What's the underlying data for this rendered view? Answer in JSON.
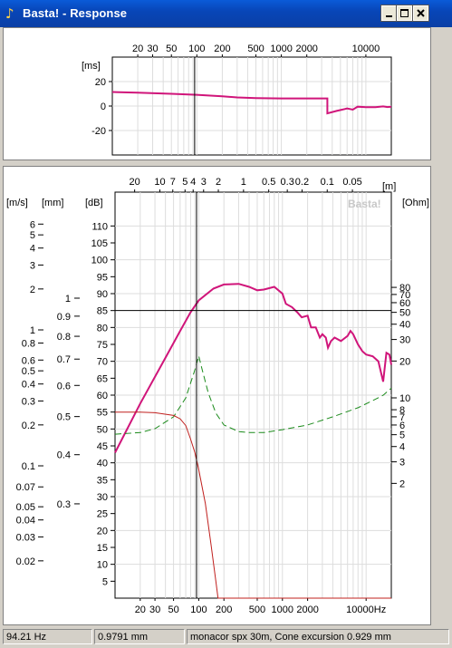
{
  "window": {
    "title": "Basta! - Response",
    "app_icon": "basta-note-icon",
    "buttons": [
      "minimize",
      "maximize",
      "close"
    ]
  },
  "top_chart": {
    "unit_label": "[ms]",
    "freq_ticks": [
      "20",
      "30",
      "50",
      "100",
      "200",
      "500",
      "1000",
      "2000",
      "10000"
    ],
    "y_ticks": [
      "20",
      "0",
      "-20"
    ]
  },
  "main_chart": {
    "watermark": "Basta!",
    "dist_unit": "[m]",
    "dist_ticks": [
      "20",
      "10",
      "7",
      "5",
      "4",
      "3",
      "2",
      "1",
      "0.5",
      "0.3",
      "0.2",
      "0.1",
      "0.05"
    ],
    "velocity_unit": "[m/s]",
    "velocity_ticks": [
      "6",
      "5",
      "4",
      "3",
      "2",
      "1",
      "0.8",
      "0.6",
      "0.5",
      "0.4",
      "0.3",
      "0.2",
      "0.1",
      "0.07",
      "0.05",
      "0.04",
      "0.03",
      "0.02"
    ],
    "excursion_unit": "[mm]",
    "excursion_ticks": [
      "1",
      "0.9",
      "0.8",
      "0.7",
      "0.6",
      "0.5",
      "0.4",
      "0.3"
    ],
    "db_unit": "[dB]",
    "db_ticks": [
      "110",
      "105",
      "100",
      "95",
      "90",
      "85",
      "80",
      "75",
      "70",
      "65",
      "60",
      "55",
      "50",
      "45",
      "40",
      "35",
      "30",
      "25",
      "20",
      "15",
      "10",
      "5"
    ],
    "ohm_unit": "[Ohm]",
    "ohm_ticks": [
      "80",
      "70",
      "60",
      "50",
      "40",
      "30",
      "20",
      "10",
      "8",
      "7",
      "6",
      "5",
      "4",
      "3",
      "2"
    ],
    "freq_ticks": [
      "20",
      "30",
      "50",
      "100",
      "200",
      "500",
      "1000",
      "2000",
      "10000Hz"
    ]
  },
  "chart_data": [
    {
      "type": "line",
      "title": "",
      "xlabel": "",
      "ylabel": "[ms]",
      "xscale": "log",
      "xlim": [
        10,
        20000
      ],
      "ylim": [
        -40,
        40
      ],
      "series": [
        {
          "color": "#d0157a",
          "points": [
            [
              10,
              11.5
            ],
            [
              20,
              11
            ],
            [
              50,
              10
            ],
            [
              100,
              9.2
            ],
            [
              200,
              8
            ],
            [
              300,
              7
            ],
            [
              500,
              6.5
            ],
            [
              1000,
              6.2
            ],
            [
              2000,
              6.2
            ],
            [
              3500,
              6.2
            ],
            [
              3500,
              -6
            ],
            [
              4500,
              -4
            ],
            [
              6000,
              -2
            ],
            [
              7000,
              -3
            ],
            [
              8000,
              -0.5
            ],
            [
              10000,
              -1
            ],
            [
              13000,
              -1
            ],
            [
              16000,
              -0.3
            ],
            [
              18000,
              -0.8
            ],
            [
              20000,
              -0.5
            ]
          ]
        }
      ],
      "cursor_x_hz": 94.21
    },
    {
      "type": "line",
      "title": "",
      "xlabel": "",
      "ylabel": "[dB]",
      "xscale": "log",
      "xlim": [
        10,
        20000
      ],
      "ylim": [
        0,
        120
      ],
      "grid": true,
      "series": [
        {
          "color": "#d0157a",
          "axis": "dB",
          "points": [
            [
              10,
              43
            ],
            [
              20,
              57.5
            ],
            [
              40,
              71
            ],
            [
              60,
              79
            ],
            [
              80,
              84.5
            ],
            [
              100,
              88
            ],
            [
              150,
              91.5
            ],
            [
              200,
              92.7
            ],
            [
              300,
              92.9
            ],
            [
              400,
              92
            ],
            [
              500,
              91
            ],
            [
              600,
              91.2
            ],
            [
              800,
              92
            ],
            [
              1000,
              90
            ],
            [
              1100,
              87
            ],
            [
              1300,
              86
            ],
            [
              1500,
              84.5
            ],
            [
              1700,
              83
            ],
            [
              2000,
              83.5
            ],
            [
              2200,
              80
            ],
            [
              2500,
              80
            ],
            [
              2800,
              77
            ],
            [
              3000,
              78
            ],
            [
              3300,
              77
            ],
            [
              3500,
              74
            ],
            [
              3800,
              76
            ],
            [
              4200,
              77
            ],
            [
              5000,
              76
            ],
            [
              6000,
              77.5
            ],
            [
              6500,
              79
            ],
            [
              7000,
              78
            ],
            [
              8000,
              75
            ],
            [
              9000,
              73
            ],
            [
              10000,
              72
            ],
            [
              12000,
              71.5
            ],
            [
              14000,
              70
            ],
            [
              16000,
              64
            ],
            [
              17500,
              72.5
            ],
            [
              19000,
              72
            ],
            [
              20000,
              69
            ]
          ]
        },
        {
          "color": "#1a8a1a",
          "axis": "Ohm",
          "dashed": true,
          "points": [
            [
              10,
              5.05
            ],
            [
              20,
              5.2
            ],
            [
              30,
              5.6
            ],
            [
              50,
              7
            ],
            [
              70,
              10
            ],
            [
              90,
              17
            ],
            [
              100,
              22
            ],
            [
              110,
              17
            ],
            [
              130,
              11
            ],
            [
              160,
              7.5
            ],
            [
              200,
              6
            ],
            [
              300,
              5.3
            ],
            [
              400,
              5.2
            ],
            [
              600,
              5.2
            ],
            [
              1000,
              5.5
            ],
            [
              2000,
              6
            ],
            [
              4000,
              7
            ],
            [
              8000,
              8.3
            ],
            [
              12000,
              9.5
            ],
            [
              16000,
              10.5
            ],
            [
              20000,
              12
            ]
          ]
        },
        {
          "color": "#c0201e",
          "axis": "dB",
          "points": [
            [
              10,
              55
            ],
            [
              20,
              55
            ],
            [
              30,
              54.8
            ],
            [
              50,
              54
            ],
            [
              60,
              53
            ],
            [
              70,
              51
            ],
            [
              80,
              47
            ],
            [
              90,
              43
            ],
            [
              100,
              38
            ],
            [
              120,
              28
            ],
            [
              140,
              16
            ],
            [
              160,
              5
            ],
            [
              170,
              0
            ],
            [
              20000,
              0
            ]
          ]
        }
      ],
      "cursor_x_hz": 94.21,
      "cursor_y_db": 85
    }
  ],
  "status": {
    "frequency": "94.21 Hz",
    "excursion": "0.9791 mm",
    "info": "monacor spx 30m, Cone excursion 0.929 mm"
  }
}
